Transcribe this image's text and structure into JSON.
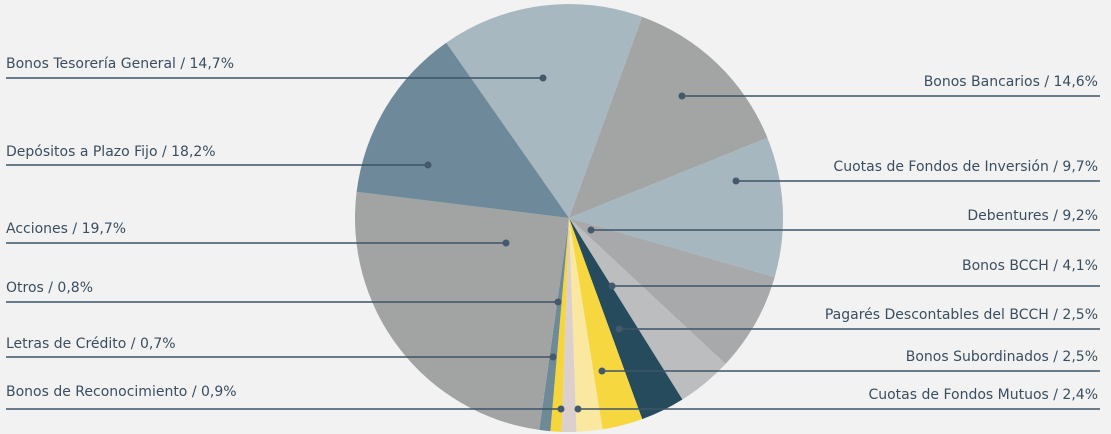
{
  "chart_data": {
    "type": "pie",
    "slices": [
      {
        "label": "Bonos Tesorería General",
        "value": 14.7,
        "display": "Bonos Tesorería General / 14,7%",
        "color": "#a7b8c1"
      },
      {
        "label": "Bonos Bancarios",
        "value": 14.6,
        "display": "Bonos Bancarios / 14,6%",
        "color": "#a3a4a4"
      },
      {
        "label": "Cuotas de Fondos de Inversión",
        "value": 9.7,
        "display": "Cuotas de Fondos de Inversión / 9,7%",
        "color": "#a6b7bf"
      },
      {
        "label": "Bonos BCCH",
        "value": 4.1,
        "display": "Bonos BCCH / 4,1%",
        "color": "#a8a9aa"
      },
      {
        "label": "Pagarés Descontables del BCCH",
        "value": 2.5,
        "display": "Pagarés Descontables del BCCH / 2,5%",
        "color": "#bcbdbf"
      },
      {
        "label": "Bonos Subordinados",
        "value": 2.5,
        "display": "Bonos Subordinados / 2,5%",
        "color": "#264b5c"
      },
      {
        "label": "Cuotas de Fondos Mutuos",
        "value": 2.4,
        "display": "Cuotas de Fondos Mutuos / 2,4%",
        "color": "#f6d740"
      },
      {
        "label": "Debentures",
        "value": 9.2,
        "display": "Debentures / 9,2%",
        "color": "#fae7a0"
      },
      {
        "label": "Bonos de Reconocimiento",
        "value": 0.9,
        "display": "Bonos de Reconocimiento / 0,9%",
        "color": "#dcd0cc"
      },
      {
        "label": "Letras de Crédito",
        "value": 0.7,
        "display": "Letras de Crédito / 0,7%",
        "color": "#f5d63c"
      },
      {
        "label": "Otros",
        "value": 0.8,
        "display": "Otros / 0,8%",
        "color": "#6e8a96"
      },
      {
        "label": "Acciones",
        "value": 19.7,
        "display": "Acciones / 19,7%",
        "color": "#a2a3a3"
      },
      {
        "label": "Depósitos a Plazo Fijo",
        "value": 18.2,
        "display": "Depósitos a Plazo Fijo / 18,2%",
        "color": "#6e8a9a"
      }
    ]
  }
}
